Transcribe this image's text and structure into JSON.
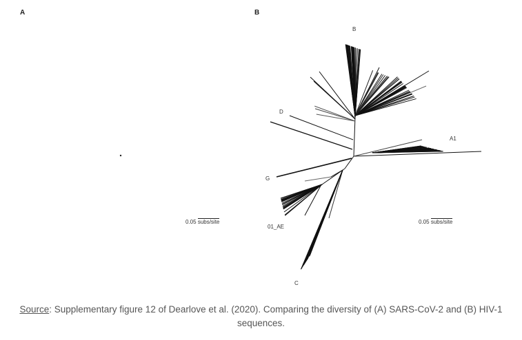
{
  "panels": {
    "a_label": "A",
    "b_label": "B"
  },
  "tree_b": {
    "clades": {
      "b": "B",
      "d": "D",
      "a1": "A1",
      "g": "G",
      "ae": "01_AE",
      "c": "C"
    }
  },
  "scale_bar": {
    "value": "0.05",
    "unit": "subs/site"
  },
  "caption": {
    "source_link": "Source",
    "text": ": Supplementary figure 12 of Dearlove et al. (2020). Comparing the diversity of (A) SARS-CoV-2 and (B) HIV-1 sequences."
  }
}
